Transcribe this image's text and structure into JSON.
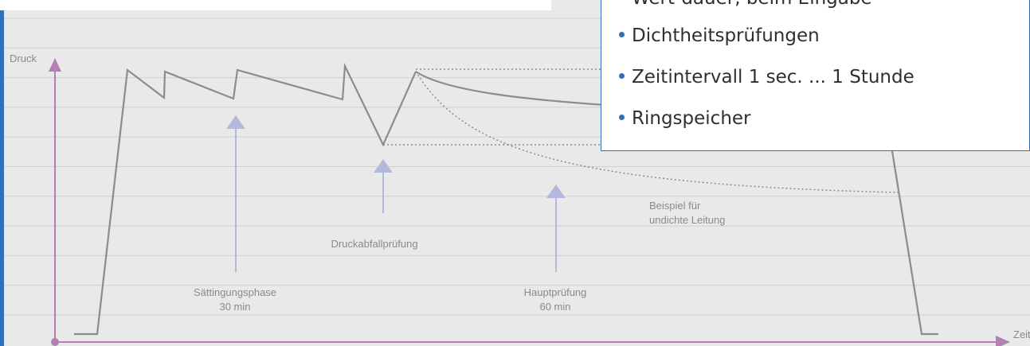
{
  "labels": {
    "y_axis": "Druck",
    "x_axis": "Zeit",
    "saettigung_name": "Sättingungsphase",
    "saettigung_duration": "30 min",
    "druckabfall": "Druckabfallprüfung",
    "haupt_name": "Hauptprüfung",
    "haupt_duration": "60 min",
    "leak_line1": "Beispiel für",
    "leak_line2": "undichte Leitung"
  },
  "bullets": [
    "Dichtheitsprüfungen",
    "Zeitintervall 1 sec. ... 1 Stunde",
    "Ringspeicher"
  ],
  "partial_bullet": "Wert-dauer, beim Eingabe",
  "colors": {
    "background": "#e9e9e9",
    "gridline": "#cfcfcf",
    "axis": "#b57fb3",
    "curve": "#8c8c8c",
    "phase_arrow": "#b3b9dd",
    "accent_blue": "#2e6fb7",
    "label_text": "#8a8a8a"
  }
}
